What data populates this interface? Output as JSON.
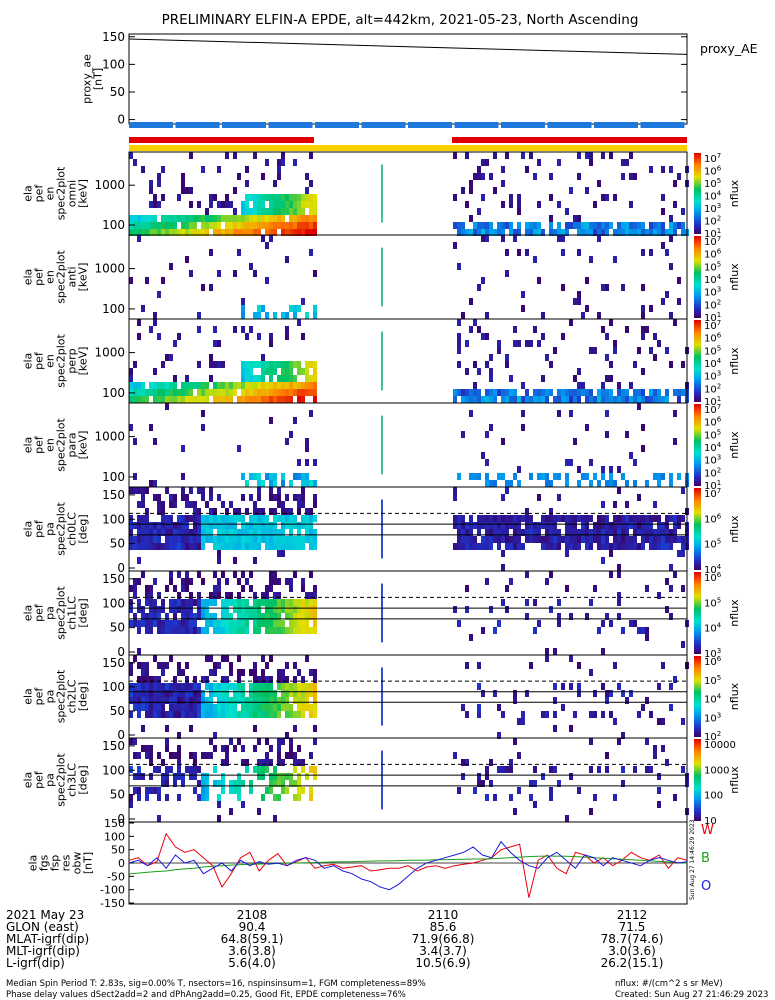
{
  "title": "PRELIMINARY ELFIN-A EPDE, alt=442km, 2021-05-23, North Ascending",
  "chart_data": [
    {
      "type": "line",
      "panel": "proxy_ae",
      "ylabel": [
        "proxy_ae",
        "[nT]"
      ],
      "legend": "proxy_AE",
      "yticks": [
        "150",
        "100",
        "50",
        "0"
      ],
      "ylim": [
        -8,
        155
      ],
      "x": [
        "2106:50",
        "2113:00"
      ],
      "series": [
        {
          "name": "proxy_AE",
          "values": [
            146,
            118
          ]
        }
      ]
    },
    {
      "type": "heatmap",
      "panel": "omni energy",
      "ylabel": [
        "ela",
        "pef",
        "en",
        "spec2plot",
        "omni",
        "[keV]"
      ],
      "yticks": [
        "1000",
        "100"
      ],
      "cbar_ticks": [
        "10^7",
        "10^6",
        "10^5",
        "10^4",
        "10^3",
        "10^2",
        "10^1"
      ],
      "cbar_label": "nflux"
    },
    {
      "type": "heatmap",
      "panel": "anti energy",
      "ylabel": [
        "ela",
        "pef",
        "en",
        "spec2plot",
        "anti",
        "[keV]"
      ],
      "yticks": [
        "1000",
        "100"
      ],
      "cbar_ticks": [
        "10^7",
        "10^6",
        "10^5",
        "10^4",
        "10^3",
        "10^2",
        "10^1"
      ],
      "cbar_label": "nflux"
    },
    {
      "type": "heatmap",
      "panel": "perp energy",
      "ylabel": [
        "ela",
        "pef",
        "en",
        "spec2plot",
        "perp",
        "[keV]"
      ],
      "yticks": [
        "1000",
        "100"
      ],
      "cbar_ticks": [
        "10^7",
        "10^6",
        "10^5",
        "10^4",
        "10^3",
        "10^2",
        "10^1"
      ],
      "cbar_label": "nflux"
    },
    {
      "type": "heatmap",
      "panel": "para energy",
      "ylabel": [
        "ela",
        "pef",
        "en",
        "spec2plot",
        "para",
        "[keV]"
      ],
      "yticks": [
        "1000",
        "100"
      ],
      "cbar_ticks": [
        "10^7",
        "10^6",
        "10^5",
        "10^4",
        "10^3",
        "10^2",
        "10^1"
      ],
      "cbar_label": "nflux"
    },
    {
      "type": "heatmap",
      "panel": "ch0LC pitch angle",
      "ylabel": [
        "ela",
        "pef",
        "pa",
        "spec2plot",
        "ch0LC",
        "[deg]"
      ],
      "yticks": [
        "150",
        "100",
        "50",
        "0"
      ],
      "cbar_ticks": [
        "10^7",
        "10^6",
        "10^5",
        "10^4"
      ],
      "cbar_label": "nflux"
    },
    {
      "type": "heatmap",
      "panel": "ch1LC pitch angle",
      "ylabel": [
        "ela",
        "pef",
        "pa",
        "spec2plot",
        "ch1LC",
        "[deg]"
      ],
      "yticks": [
        "150",
        "100",
        "50",
        "0"
      ],
      "cbar_ticks": [
        "10^6",
        "10^5",
        "10^4",
        "10^3"
      ],
      "cbar_label": "nflux"
    },
    {
      "type": "heatmap",
      "panel": "ch2LC pitch angle",
      "ylabel": [
        "ela",
        "pef",
        "pa",
        "spec2plot",
        "ch2LC",
        "[deg]"
      ],
      "yticks": [
        "150",
        "100",
        "50",
        "0"
      ],
      "cbar_ticks": [
        "10^6",
        "10^5",
        "10^4",
        "10^3",
        "10^2"
      ],
      "cbar_label": "nflux"
    },
    {
      "type": "heatmap",
      "panel": "ch3LC pitch angle",
      "ylabel": [
        "ela",
        "pef",
        "pa",
        "spec2plot",
        "ch3LC",
        "[deg]"
      ],
      "yticks": [
        "150",
        "100",
        "50",
        "0"
      ],
      "cbar_ticks": [
        "10000",
        "1000",
        "100",
        "10"
      ],
      "cbar_label": "nflux"
    },
    {
      "type": "line",
      "panel": "fgs residuals",
      "ylabel": [
        "ela",
        "fgs",
        "fsp",
        "res",
        "obw",
        "[nT]"
      ],
      "yticks": [
        "150",
        "100",
        "50",
        "0",
        "-50",
        "-100",
        "-150"
      ],
      "ylim": [
        -150,
        150
      ],
      "x": [
        0,
        1,
        2,
        3,
        4,
        5,
        6,
        7,
        8,
        9,
        10,
        11,
        12,
        13,
        14,
        15,
        16,
        17,
        18,
        19,
        20,
        21,
        22,
        23,
        24,
        25,
        26,
        27,
        28,
        29,
        30,
        31,
        32,
        33,
        34,
        35,
        36,
        37,
        38,
        39,
        40,
        41,
        42,
        43,
        44,
        45,
        46,
        47,
        48,
        49,
        50,
        51,
        52,
        53,
        54,
        55,
        56,
        57,
        58,
        59,
        60
      ],
      "series": [
        {
          "name": "W",
          "color": "#e8000b",
          "values": [
            10,
            20,
            -10,
            5,
            110,
            60,
            40,
            50,
            20,
            -10,
            -90,
            -40,
            20,
            40,
            -30,
            10,
            35,
            -10,
            5,
            20,
            -20,
            -10,
            -5,
            -20,
            -15,
            -10,
            -30,
            -25,
            -20,
            -20,
            -10,
            -30,
            -15,
            -10,
            -20,
            -10,
            -5,
            0,
            10,
            20,
            50,
            60,
            70,
            -130,
            10,
            30,
            -20,
            -40,
            40,
            30,
            0,
            20,
            -10,
            10,
            40,
            20,
            10,
            30,
            -20,
            20,
            10
          ]
        },
        {
          "name": "B",
          "color": "#1b9e1b",
          "values": [
            -40,
            -38,
            -35,
            -32,
            -30,
            -25,
            -22,
            -20,
            -15,
            -12,
            -10,
            -8,
            -6,
            -5,
            -4,
            -3,
            -2,
            -1,
            0,
            1,
            2,
            3,
            4,
            5,
            5,
            6,
            7,
            8,
            8,
            9,
            10,
            10,
            11,
            12,
            12,
            13,
            14,
            15,
            15,
            16,
            18,
            20,
            22,
            24,
            25,
            26,
            26,
            25,
            24,
            22,
            20,
            18,
            16,
            14,
            12,
            10,
            8,
            6,
            4,
            2,
            0
          ]
        },
        {
          "name": "O",
          "color": "#1a1adb",
          "values": [
            0,
            10,
            -10,
            20,
            -20,
            30,
            0,
            10,
            -40,
            -20,
            0,
            -30,
            10,
            -10,
            5,
            -5,
            0,
            -10,
            10,
            20,
            10,
            -20,
            -10,
            -30,
            -40,
            -60,
            -70,
            -90,
            -100,
            -80,
            -50,
            -20,
            0,
            10,
            20,
            30,
            40,
            60,
            30,
            20,
            80,
            40,
            10,
            -10,
            -20,
            20,
            40,
            10,
            -20,
            30,
            20,
            -10,
            20,
            10,
            0,
            -10,
            10,
            20,
            10,
            0,
            5
          ]
        }
      ],
      "legend": [
        "W",
        "B",
        "O"
      ]
    }
  ],
  "time_axis": {
    "date": "2021 May 23",
    "ticks": [
      "2108",
      "2110",
      "2112"
    ]
  },
  "ephemeris": [
    {
      "label": "GLON (east)",
      "values": [
        "90.4",
        "85.6",
        "71.5"
      ]
    },
    {
      "label": "MLAT-igrf(dip)",
      "values": [
        "64.8(59.1)",
        "71.9(66.8)",
        "78.7(74.6)"
      ]
    },
    {
      "label": "MLT-igrf(dip)",
      "values": [
        "3.6(3.8)",
        "3.4(3.7)",
        "3.0(3.6)"
      ]
    },
    {
      "label": "L-igrf(dip)",
      "values": [
        "5.6(4.0)",
        "10.5(6.9)",
        "26.2(15.1)"
      ]
    }
  ],
  "footer": {
    "line1": "Median Spin Period T: 2.83s, sig=0.00% T, nsectors=16, nspinsinsum=1, FGM completeness=89%",
    "line2": "Phase delay values dSect2add=2 and dPhAng2add=0.25, Good Fit, EPDE completeness=76%",
    "units": "nflux: #/(cm^2 s sr MeV)",
    "created": "Created: Sun Aug 27 21:46:29 2023"
  },
  "side_stamp": "Sun Aug 27 14:46:29 2023"
}
